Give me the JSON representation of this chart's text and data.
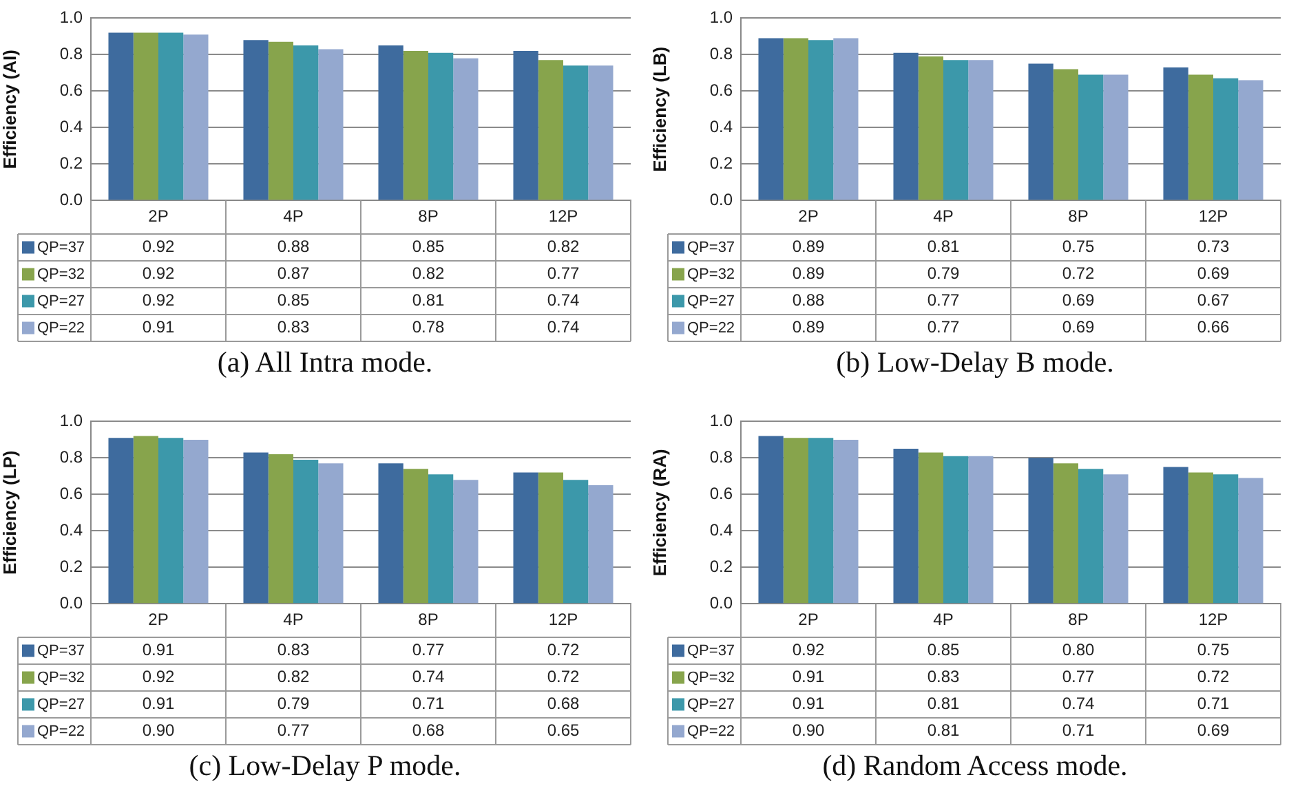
{
  "chart_data": [
    {
      "type": "bar",
      "title": "(a) All Intra mode.",
      "ylabel": "Efficiency (AI)",
      "categories": [
        "2P",
        "4P",
        "8P",
        "12P"
      ],
      "ylim": [
        0,
        1
      ],
      "yticks": [
        {
          "value": 0,
          "label": "0.0"
        },
        {
          "value": 0.2,
          "label": "0.2"
        },
        {
          "value": 0.4,
          "label": "0.4"
        },
        {
          "value": 0.6,
          "label": "0.6"
        },
        {
          "value": 0.8,
          "label": "0.8"
        },
        {
          "value": 1,
          "label": "1.0"
        }
      ],
      "grid": "y",
      "legend": "bottom",
      "data_labels": true,
      "series": [
        {
          "name": "QP=37",
          "color": "#3e6b9e",
          "values": [
            0.92,
            0.88,
            0.85,
            0.82
          ]
        },
        {
          "name": "QP=32",
          "color": "#87a44c",
          "values": [
            0.92,
            0.87,
            0.82,
            0.77
          ]
        },
        {
          "name": "QP=27",
          "color": "#3c98aa",
          "values": [
            0.92,
            0.85,
            0.81,
            0.74
          ]
        },
        {
          "name": "QP=22",
          "color": "#94a8cf",
          "values": [
            0.91,
            0.83,
            0.78,
            0.74
          ]
        }
      ]
    },
    {
      "type": "bar",
      "title": "(b) Low-Delay B mode.",
      "ylabel": "Efficiency (LB)",
      "categories": [
        "2P",
        "4P",
        "8P",
        "12P"
      ],
      "ylim": [
        0,
        1
      ],
      "yticks": [
        {
          "value": 0,
          "label": "0.0"
        },
        {
          "value": 0.2,
          "label": "0.2"
        },
        {
          "value": 0.4,
          "label": "0.4"
        },
        {
          "value": 0.6,
          "label": "0.6"
        },
        {
          "value": 0.8,
          "label": "0.8"
        },
        {
          "value": 1,
          "label": "1.0"
        }
      ],
      "grid": "y",
      "legend": "bottom",
      "data_labels": true,
      "series": [
        {
          "name": "QP=37",
          "color": "#3e6b9e",
          "values": [
            0.89,
            0.81,
            0.75,
            0.73
          ]
        },
        {
          "name": "QP=32",
          "color": "#87a44c",
          "values": [
            0.89,
            0.79,
            0.72,
            0.69
          ]
        },
        {
          "name": "QP=27",
          "color": "#3c98aa",
          "values": [
            0.88,
            0.77,
            0.69,
            0.67
          ]
        },
        {
          "name": "QP=22",
          "color": "#94a8cf",
          "values": [
            0.89,
            0.77,
            0.69,
            0.66
          ]
        }
      ]
    },
    {
      "type": "bar",
      "title": "(c) Low-Delay P mode.",
      "ylabel": "Efficiency (LP)",
      "categories": [
        "2P",
        "4P",
        "8P",
        "12P"
      ],
      "ylim": [
        0,
        1
      ],
      "yticks": [
        {
          "value": 0,
          "label": "0.0"
        },
        {
          "value": 0.2,
          "label": "0.2"
        },
        {
          "value": 0.4,
          "label": "0.4"
        },
        {
          "value": 0.6,
          "label": "0.6"
        },
        {
          "value": 0.8,
          "label": "0.8"
        },
        {
          "value": 1,
          "label": "1.0"
        }
      ],
      "grid": "y",
      "legend": "bottom",
      "series": [
        {
          "name": "QP=37",
          "color": "#3e6b9e",
          "values": [
            0.91,
            0.83,
            0.77,
            0.72
          ],
          "value_labels": [
            "0.91",
            "0.83",
            "0.77",
            "0.72"
          ]
        },
        {
          "name": "QP=32",
          "color": "#87a44c",
          "values": [
            0.92,
            0.82,
            0.74,
            0.72
          ],
          "value_labels": [
            "0.92",
            "0.82",
            "0.74",
            "0.72"
          ]
        },
        {
          "name": "QP=27",
          "color": "#3c98aa",
          "values": [
            0.91,
            0.79,
            0.71,
            0.68
          ],
          "value_labels": [
            "0.91",
            "0.79",
            "0.71",
            "0.68"
          ]
        },
        {
          "name": "QP=22",
          "color": "#94a8cf",
          "values": [
            0.9,
            0.77,
            0.68,
            0.65
          ],
          "value_labels": [
            "0.90",
            "0.77",
            "0.68",
            "0.65"
          ]
        }
      ]
    },
    {
      "type": "bar",
      "title": "(d) Random Access mode.",
      "ylabel": "Efficiency (RA)",
      "categories": [
        "2P",
        "4P",
        "8P",
        "12P"
      ],
      "ylim": [
        0,
        1
      ],
      "yticks": [
        {
          "value": 0,
          "label": "0.0"
        },
        {
          "value": 0.2,
          "label": "0.2"
        },
        {
          "value": 0.4,
          "label": "0.4"
        },
        {
          "value": 0.6,
          "label": "0.6"
        },
        {
          "value": 0.8,
          "label": "0.8"
        },
        {
          "value": 1,
          "label": "1.0"
        }
      ],
      "grid": "y",
      "legend": "bottom",
      "series": [
        {
          "name": "QP=37",
          "color": "#3e6b9e",
          "values": [
            0.92,
            0.85,
            0.8,
            0.75
          ],
          "value_labels": [
            "0.92",
            "0.85",
            "0.80",
            "0.75"
          ]
        },
        {
          "name": "QP=32",
          "color": "#87a44c",
          "values": [
            0.91,
            0.83,
            0.77,
            0.72
          ],
          "value_labels": [
            "0.91",
            "0.83",
            "0.77",
            "0.72"
          ]
        },
        {
          "name": "QP=27",
          "color": "#3c98aa",
          "values": [
            0.91,
            0.81,
            0.74,
            0.71
          ],
          "value_labels": [
            "0.91",
            "0.81",
            "0.74",
            "0.71"
          ]
        },
        {
          "name": "QP=22",
          "color": "#94a8cf",
          "values": [
            0.9,
            0.81,
            0.71,
            0.69
          ],
          "value_labels": [
            "0.90",
            "0.81",
            "0.71",
            "0.69"
          ]
        }
      ]
    }
  ]
}
